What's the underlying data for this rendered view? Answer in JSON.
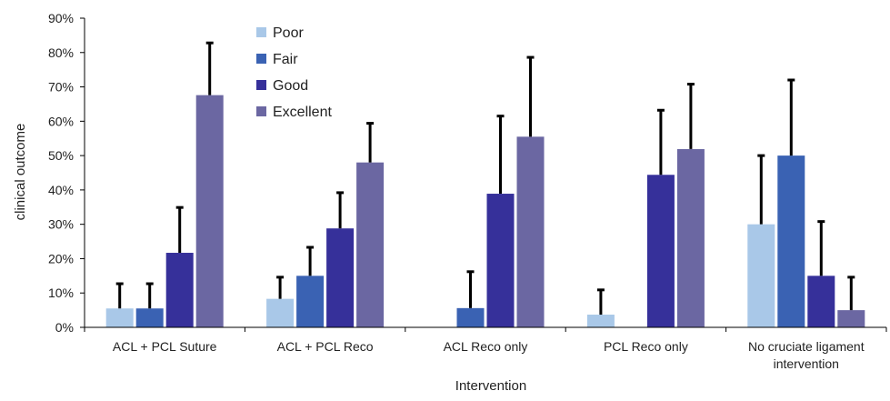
{
  "chart_data": {
    "type": "bar",
    "title": "",
    "xlabel": "Intervention",
    "ylabel": "clinical outcome",
    "ylim": [
      0,
      90
    ],
    "yticks": [
      0,
      10,
      20,
      30,
      40,
      50,
      60,
      70,
      80,
      90
    ],
    "ytick_labels": [
      "0%",
      "10%",
      "20%",
      "30%",
      "40%",
      "50%",
      "60%",
      "70%",
      "80%",
      "90%"
    ],
    "grid": false,
    "legend_position": "top-left",
    "categories": [
      [
        "ACL + PCL Suture"
      ],
      [
        "ACL + PCL Reco"
      ],
      [
        "ACL Reco only"
      ],
      [
        "PCL Reco only"
      ],
      [
        "No cruciate ligament",
        "intervention"
      ]
    ],
    "series": [
      {
        "name": "Poor",
        "color": "#a9c8e8",
        "values": [
          5.5,
          8.3,
          0,
          3.7,
          30
        ],
        "error": [
          7.2,
          6.3,
          0,
          7.2,
          20
        ]
      },
      {
        "name": "Fair",
        "color": "#3a62b3",
        "values": [
          5.5,
          15,
          5.6,
          0,
          50
        ],
        "error": [
          7.2,
          8.3,
          10.6,
          0,
          22
        ]
      },
      {
        "name": "Good",
        "color": "#36309a",
        "values": [
          21.7,
          28.8,
          38.9,
          44.4,
          15
        ],
        "error": [
          13.2,
          10.4,
          22.6,
          18.8,
          15.8
        ]
      },
      {
        "name": "Excellent",
        "color": "#6b67a2",
        "values": [
          67.6,
          48,
          55.5,
          51.9,
          5
        ],
        "error": [
          15.2,
          11.4,
          23.1,
          18.9,
          9.6
        ]
      }
    ]
  }
}
